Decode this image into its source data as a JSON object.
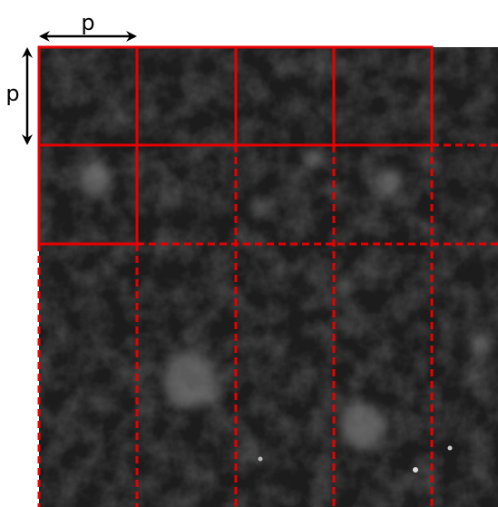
{
  "labels": {
    "horizontal": "p",
    "vertical": "p"
  }
}
